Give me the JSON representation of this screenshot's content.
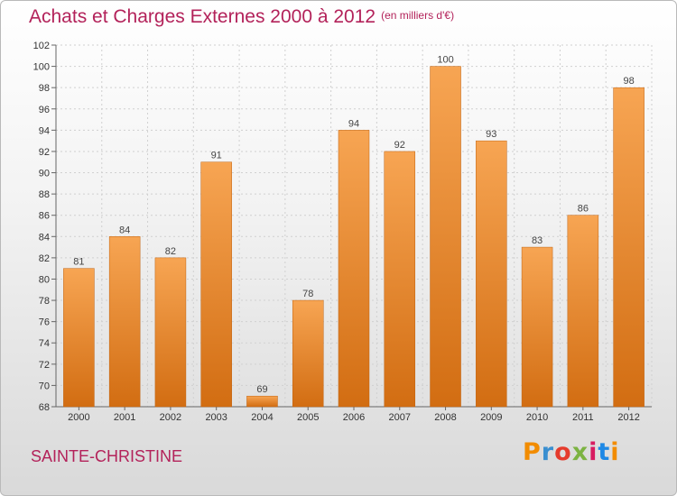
{
  "header": {
    "title": "Achats et Charges Externes 2000 à 2012",
    "subtitle": "(en milliers d'€)"
  },
  "footer": {
    "commune": "SAINTE-CHRISTINE"
  },
  "logo": {
    "text": "Proxiti",
    "letter_colors": [
      "#f28c00",
      "#3a8fd0",
      "#e53b2c",
      "#7cb342",
      "#d81b60",
      "#1e88e5",
      "#f28c00"
    ]
  },
  "colors": {
    "title": "#b3225a",
    "bar_top": "#f7a553",
    "bar_bottom": "#d26d12",
    "bar_edge": "#c0620f"
  },
  "chart_data": {
    "type": "bar",
    "title": "Achats et Charges Externes 2000 à 2012",
    "subtitle": "(en milliers d'€)",
    "xlabel": "",
    "ylabel": "",
    "categories": [
      "2000",
      "2001",
      "2002",
      "2003",
      "2004",
      "2005",
      "2006",
      "2007",
      "2008",
      "2009",
      "2010",
      "2011",
      "2012"
    ],
    "values": [
      81,
      84,
      82,
      91,
      69,
      78,
      94,
      92,
      100,
      93,
      83,
      86,
      98
    ],
    "ylim": [
      68,
      102
    ],
    "yticks": [
      68,
      70,
      72,
      74,
      76,
      78,
      80,
      82,
      84,
      86,
      88,
      90,
      92,
      94,
      96,
      98,
      100,
      102
    ],
    "grid": true,
    "data_labels": true
  }
}
